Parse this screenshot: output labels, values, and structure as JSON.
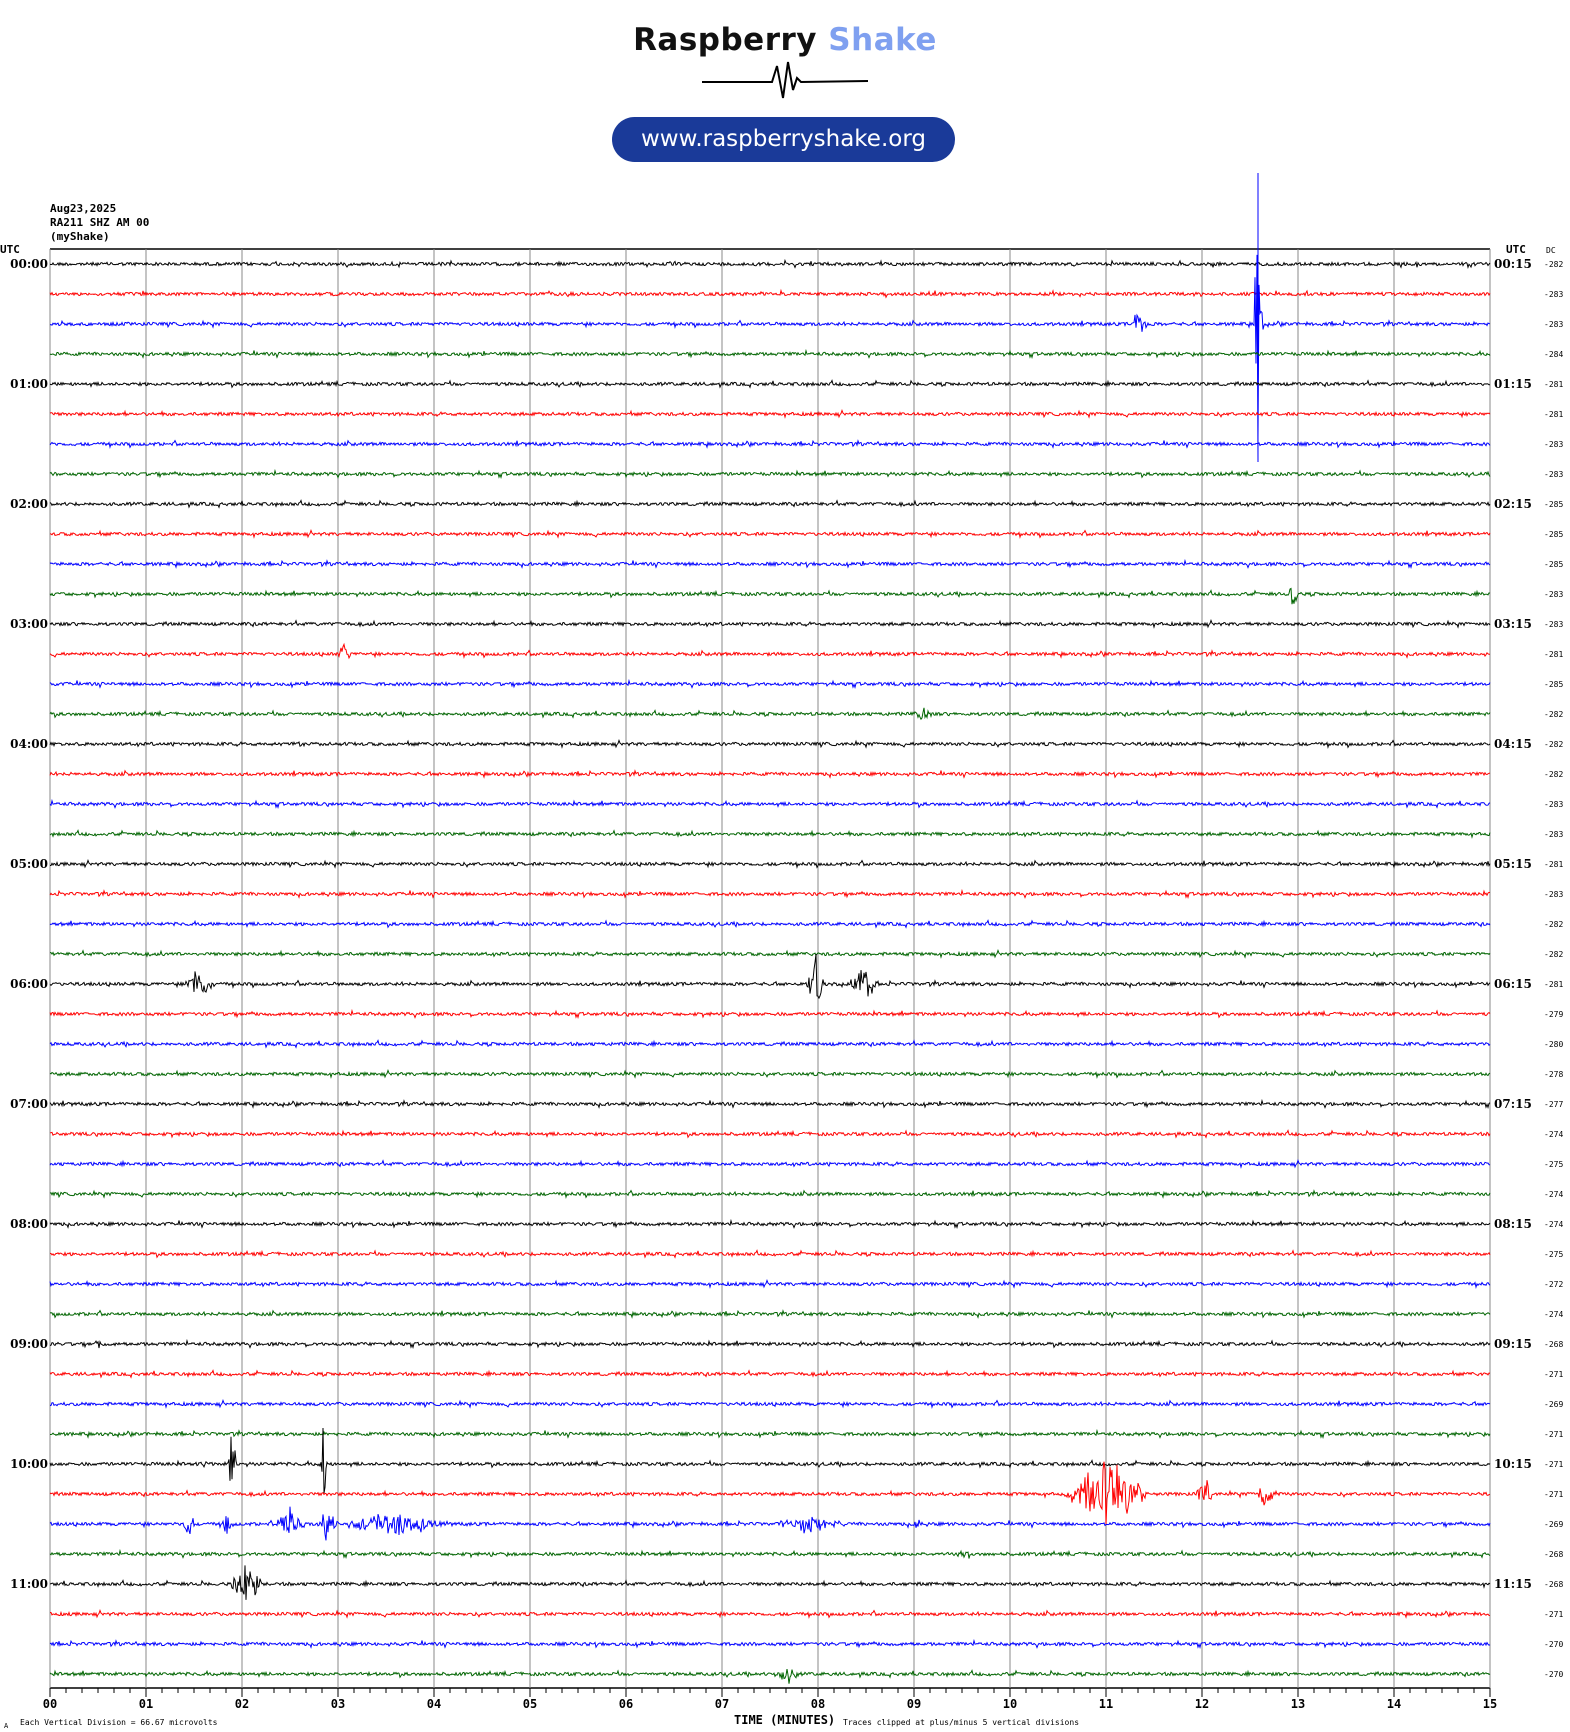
{
  "logo": {
    "word1": "Raspberry",
    "word2": "Shake",
    "url": "www.raspberryshake.org",
    "pill_color": "#1a3a99",
    "accent": "#7fa0f0"
  },
  "header": {
    "date": "Aug23,2025",
    "station": "RA211 SHZ AM 00",
    "network": "(myShake)"
  },
  "left_axis": {
    "title": "UTC",
    "labels": [
      "00:00",
      "01:00",
      "02:00",
      "03:00",
      "04:00",
      "05:00",
      "06:00",
      "07:00",
      "08:00",
      "09:00",
      "10:00",
      "11:00"
    ]
  },
  "right_axis": {
    "title": "UTC",
    "dc_title": "DC",
    "labels": [
      "00:15",
      "01:15",
      "02:15",
      "03:15",
      "04:15",
      "05:15",
      "06:15",
      "07:15",
      "08:15",
      "09:15",
      "10:15",
      "11:15"
    ]
  },
  "footer": {
    "division": "Each Vertical Division =    66.67 microvolts",
    "xlabel": "TIME (MINUTES)",
    "clip_note": "Traces clipped at plus/minus 5 vertical divisions",
    "corner": "A"
  },
  "chart_data": {
    "type": "line",
    "title": "",
    "xlabel": "TIME (MINUTES)",
    "xlim": [
      0,
      15
    ],
    "x_ticks": [
      "00",
      "01",
      "02",
      "03",
      "04",
      "05",
      "06",
      "07",
      "08",
      "09",
      "10",
      "11",
      "12",
      "13",
      "14",
      "15"
    ],
    "grid": true,
    "trace_colors": [
      "#000000",
      "#ff0000",
      "#0000ff",
      "#006400"
    ],
    "rows": 48,
    "row_minutes": 15,
    "dc": [
      -282,
      -283,
      -283,
      -284,
      -281,
      -281,
      -283,
      -283,
      -285,
      -285,
      -285,
      -283,
      -283,
      -281,
      -285,
      -282,
      -282,
      -282,
      -283,
      -283,
      -281,
      -283,
      -282,
      -282,
      -281,
      -279,
      -280,
      -278,
      -277,
      -274,
      -275,
      -274,
      -274,
      -275,
      -272,
      -274,
      -268,
      -271,
      -269,
      -271,
      -271,
      -271,
      -269,
      -268,
      -268,
      -271,
      -270,
      -270
    ],
    "events_divisions": [
      {
        "row": 2,
        "start": 11.25,
        "end": 11.45,
        "amp": 0.5
      },
      {
        "row": 2,
        "start": 12.55,
        "end": 12.62,
        "amp": 5
      },
      {
        "row": 11,
        "start": 12.92,
        "end": 12.98,
        "amp": 0.8
      },
      {
        "row": 13,
        "start": 3.0,
        "end": 3.12,
        "amp": 0.5
      },
      {
        "row": 15,
        "start": 9.0,
        "end": 9.2,
        "amp": 0.3
      },
      {
        "row": 16,
        "start": 2.5,
        "end": 2.7,
        "amp": 0.1
      },
      {
        "row": 24,
        "start": 1.4,
        "end": 1.7,
        "amp": 0.7
      },
      {
        "row": 24,
        "start": 7.9,
        "end": 8.05,
        "amp": 1.2
      },
      {
        "row": 24,
        "start": 8.35,
        "end": 8.6,
        "amp": 1.0
      },
      {
        "row": 36,
        "start": 0.45,
        "end": 0.55,
        "amp": 0.2
      },
      {
        "row": 40,
        "start": 1.55,
        "end": 1.65,
        "amp": 0.3
      },
      {
        "row": 40,
        "start": 1.88,
        "end": 1.92,
        "amp": 2.5
      },
      {
        "row": 40,
        "start": 2.83,
        "end": 2.88,
        "amp": 2.5
      },
      {
        "row": 41,
        "start": 10.55,
        "end": 11.45,
        "amp": 1.5
      },
      {
        "row": 41,
        "start": 11.95,
        "end": 12.1,
        "amp": 0.6
      },
      {
        "row": 41,
        "start": 12.55,
        "end": 12.8,
        "amp": 0.6
      },
      {
        "row": 42,
        "start": 1.4,
        "end": 1.5,
        "amp": 0.6
      },
      {
        "row": 42,
        "start": 1.8,
        "end": 1.9,
        "amp": 0.5
      },
      {
        "row": 42,
        "start": 2.35,
        "end": 2.65,
        "amp": 0.8
      },
      {
        "row": 42,
        "start": 2.8,
        "end": 3.0,
        "amp": 0.9
      },
      {
        "row": 42,
        "start": 3.0,
        "end": 4.15,
        "amp": 0.5
      },
      {
        "row": 42,
        "start": 7.6,
        "end": 8.3,
        "amp": 0.4
      },
      {
        "row": 42,
        "start": 9.02,
        "end": 9.08,
        "amp": 0.3
      },
      {
        "row": 43,
        "start": 9.4,
        "end": 9.6,
        "amp": 0.2
      },
      {
        "row": 44,
        "start": 1.9,
        "end": 2.2,
        "amp": 1.2
      },
      {
        "row": 47,
        "start": 7.55,
        "end": 7.8,
        "amp": 0.5
      }
    ]
  }
}
